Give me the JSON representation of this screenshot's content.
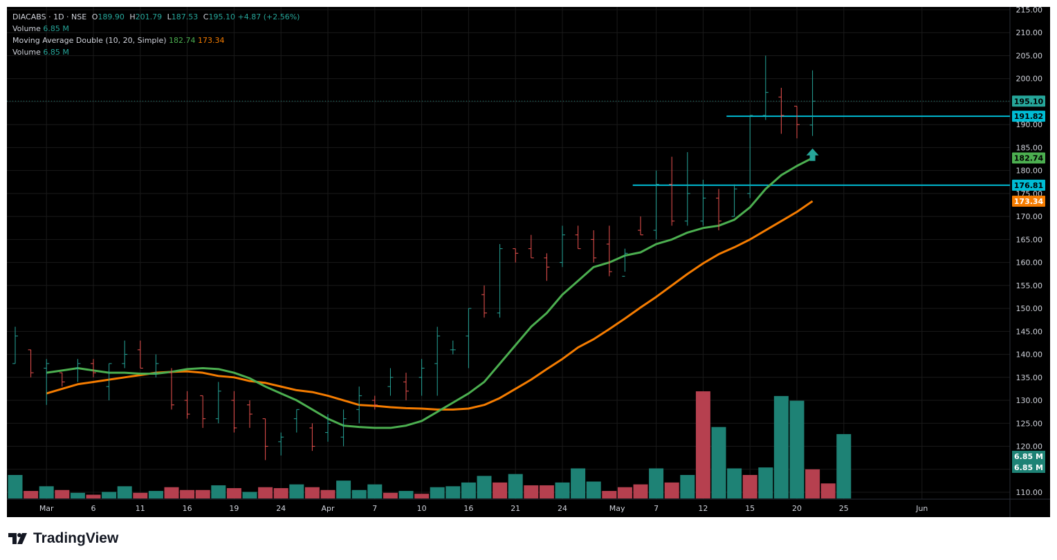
{
  "legend": {
    "symbol": "DIACABS · 1D · NSE",
    "open_label": "O",
    "open": "189.90",
    "high_label": "H",
    "high": "201.79",
    "low_label": "L",
    "low": "187.53",
    "close_label": "C",
    "close": "195.10",
    "change": "+4.87 (+2.56%)",
    "volume_label": "Volume",
    "volume": "6.85 M",
    "ma_label": "Moving Average Double (10, 20, Simple)",
    "ma_fast": "182.74",
    "ma_slow": "173.34",
    "volume2_label": "Volume",
    "volume2": "6.85 M"
  },
  "brand": {
    "name": "TradingView"
  },
  "colors": {
    "up": "#26a69a",
    "down": "#ef5350",
    "vol_up": "#1e8275",
    "vol_down": "#b6404f",
    "ma_fast": "#4caf50",
    "ma_slow": "#f57c00",
    "hline": "#00bcd4",
    "background": "#000000"
  },
  "chart_data": {
    "type": "ohlc",
    "y_axis": {
      "min": 110,
      "max": 215,
      "ticks": [
        "110.00",
        "115.00",
        "120.00",
        "125.00",
        "130.00",
        "135.00",
        "140.00",
        "145.00",
        "150.00",
        "155.00",
        "160.00",
        "165.00",
        "170.00",
        "175.00",
        "180.00",
        "185.00",
        "190.00",
        "195.00",
        "200.00",
        "205.00",
        "210.00",
        "215.00"
      ]
    },
    "x_axis": {
      "ticks": [
        {
          "i": 2,
          "label": "Mar"
        },
        {
          "i": 5,
          "label": "6"
        },
        {
          "i": 8,
          "label": "11"
        },
        {
          "i": 11,
          "label": "16"
        },
        {
          "i": 14,
          "label": "19"
        },
        {
          "i": 17,
          "label": "24"
        },
        {
          "i": 20,
          "label": "Apr"
        },
        {
          "i": 23,
          "label": "7"
        },
        {
          "i": 26,
          "label": "10"
        },
        {
          "i": 29,
          "label": "16"
        },
        {
          "i": 32,
          "label": "21"
        },
        {
          "i": 35,
          "label": "24"
        },
        {
          "i": 38.5,
          "label": "May"
        },
        {
          "i": 41,
          "label": "7"
        },
        {
          "i": 44,
          "label": "12"
        },
        {
          "i": 47,
          "label": "15"
        },
        {
          "i": 50,
          "label": "20"
        },
        {
          "i": 53,
          "label": "25"
        },
        {
          "i": 58,
          "label": "Jun"
        }
      ]
    },
    "bars": [
      {
        "o": 138,
        "h": 146,
        "l": 138,
        "c": 144
      },
      {
        "o": 141,
        "h": 141,
        "l": 135,
        "c": 136
      },
      {
        "o": 137,
        "h": 139,
        "l": 129,
        "c": 138
      },
      {
        "o": 136,
        "h": 136,
        "l": 133,
        "c": 134
      },
      {
        "o": 137,
        "h": 139,
        "l": 134,
        "c": 138
      },
      {
        "o": 138,
        "h": 139,
        "l": 135,
        "c": 136
      },
      {
        "o": 133,
        "h": 138,
        "l": 130,
        "c": 138
      },
      {
        "o": 138,
        "h": 143,
        "l": 137,
        "c": 140
      },
      {
        "o": 141,
        "h": 143,
        "l": 137,
        "c": 137
      },
      {
        "o": 136,
        "h": 140,
        "l": 135,
        "c": 138
      },
      {
        "o": 136,
        "h": 137,
        "l": 128,
        "c": 129
      },
      {
        "o": 130,
        "h": 132,
        "l": 126,
        "c": 127
      },
      {
        "o": 131,
        "h": 131,
        "l": 124,
        "c": 126
      },
      {
        "o": 126,
        "h": 134,
        "l": 125,
        "c": 132
      },
      {
        "o": 130,
        "h": 132,
        "l": 123,
        "c": 124
      },
      {
        "o": 129,
        "h": 130,
        "l": 124,
        "c": 127
      },
      {
        "o": 126,
        "h": 126,
        "l": 117,
        "c": 120
      },
      {
        "o": 121,
        "h": 123,
        "l": 118,
        "c": 122
      },
      {
        "o": 126,
        "h": 128,
        "l": 123,
        "c": 128
      },
      {
        "o": 124,
        "h": 125,
        "l": 119,
        "c": 120
      },
      {
        "o": 123,
        "h": 127,
        "l": 121,
        "c": 125
      },
      {
        "o": 122,
        "h": 128,
        "l": 120,
        "c": 126
      },
      {
        "o": 128,
        "h": 133,
        "l": 125,
        "c": 131
      },
      {
        "o": 130,
        "h": 131,
        "l": 128,
        "c": 129
      },
      {
        "o": 133,
        "h": 137,
        "l": 131,
        "c": 135
      },
      {
        "o": 134,
        "h": 136,
        "l": 130,
        "c": 132
      },
      {
        "o": 135,
        "h": 139,
        "l": 131,
        "c": 137
      },
      {
        "o": 138,
        "h": 146,
        "l": 131,
        "c": 144
      },
      {
        "o": 141,
        "h": 143,
        "l": 140,
        "c": 141
      },
      {
        "o": 144,
        "h": 150,
        "l": 137,
        "c": 150
      },
      {
        "o": 153,
        "h": 155,
        "l": 148,
        "c": 149
      },
      {
        "o": 149,
        "h": 164,
        "l": 148,
        "c": 163
      },
      {
        "o": 163,
        "h": 163,
        "l": 160,
        "c": 162
      },
      {
        "o": 163,
        "h": 166,
        "l": 161,
        "c": 161
      },
      {
        "o": 161,
        "h": 162,
        "l": 156,
        "c": 159
      },
      {
        "o": 160,
        "h": 168,
        "l": 159,
        "c": 166
      },
      {
        "o": 166,
        "h": 168,
        "l": 163,
        "c": 163
      },
      {
        "o": 165,
        "h": 167,
        "l": 160,
        "c": 161
      },
      {
        "o": 164,
        "h": 168,
        "l": 157,
        "c": 158
      },
      {
        "o": 157,
        "h": 163,
        "l": 158,
        "c": 162
      },
      {
        "o": 167,
        "h": 170,
        "l": 166,
        "c": 166
      },
      {
        "o": 167,
        "h": 180,
        "l": 165,
        "c": 177
      },
      {
        "o": 177,
        "h": 183,
        "l": 168,
        "c": 169
      },
      {
        "o": 169,
        "h": 184,
        "l": 168,
        "c": 175
      },
      {
        "o": 169,
        "h": 178,
        "l": 168,
        "c": 174
      },
      {
        "o": 174,
        "h": 176,
        "l": 167,
        "c": 169
      },
      {
        "o": 170,
        "h": 177,
        "l": 170,
        "c": 176
      },
      {
        "o": 175,
        "h": 192,
        "l": 174,
        "c": 192
      },
      {
        "o": 192,
        "h": 205,
        "l": 191,
        "c": 197
      },
      {
        "o": 196,
        "h": 198,
        "l": 188,
        "c": 192
      },
      {
        "o": 194,
        "h": 194,
        "l": 187,
        "c": 190
      },
      {
        "o": 189.9,
        "h": 201.79,
        "l": 187.53,
        "c": 195.1
      }
    ],
    "volume": [
      {
        "v": 2.5,
        "up": true
      },
      {
        "v": 0.8,
        "up": false
      },
      {
        "v": 1.3,
        "up": true
      },
      {
        "v": 0.9,
        "up": false
      },
      {
        "v": 0.6,
        "up": true
      },
      {
        "v": 0.4,
        "up": false
      },
      {
        "v": 0.7,
        "up": true
      },
      {
        "v": 1.3,
        "up": true
      },
      {
        "v": 0.6,
        "up": false
      },
      {
        "v": 0.8,
        "up": true
      },
      {
        "v": 1.2,
        "up": false
      },
      {
        "v": 0.9,
        "up": false
      },
      {
        "v": 0.9,
        "up": false
      },
      {
        "v": 1.4,
        "up": true
      },
      {
        "v": 1.1,
        "up": false
      },
      {
        "v": 0.7,
        "up": true
      },
      {
        "v": 1.2,
        "up": false
      },
      {
        "v": 1.1,
        "up": false
      },
      {
        "v": 1.5,
        "up": true
      },
      {
        "v": 1.2,
        "up": false
      },
      {
        "v": 0.9,
        "up": false
      },
      {
        "v": 1.9,
        "up": true
      },
      {
        "v": 0.9,
        "up": true
      },
      {
        "v": 1.5,
        "up": true
      },
      {
        "v": 0.6,
        "up": false
      },
      {
        "v": 0.8,
        "up": true
      },
      {
        "v": 0.5,
        "up": false
      },
      {
        "v": 1.2,
        "up": true
      },
      {
        "v": 1.3,
        "up": true
      },
      {
        "v": 1.7,
        "up": true
      },
      {
        "v": 2.4,
        "up": true
      },
      {
        "v": 1.7,
        "up": false
      },
      {
        "v": 2.6,
        "up": true
      },
      {
        "v": 1.4,
        "up": false
      },
      {
        "v": 1.4,
        "up": false
      },
      {
        "v": 1.7,
        "up": true
      },
      {
        "v": 3.2,
        "up": true
      },
      {
        "v": 1.8,
        "up": true
      },
      {
        "v": 0.8,
        "up": false
      },
      {
        "v": 1.2,
        "up": false
      },
      {
        "v": 1.5,
        "up": false
      },
      {
        "v": 3.2,
        "up": true
      },
      {
        "v": 1.7,
        "up": false
      },
      {
        "v": 2.5,
        "up": true
      },
      {
        "v": 11.4,
        "up": false
      },
      {
        "v": 7.6,
        "up": true
      },
      {
        "v": 3.2,
        "up": true
      },
      {
        "v": 2.5,
        "up": false
      },
      {
        "v": 3.3,
        "up": true
      },
      {
        "v": 10.9,
        "up": true
      },
      {
        "v": 10.4,
        "up": true
      },
      {
        "v": 3.1,
        "up": false
      },
      {
        "v": 1.6,
        "up": false
      },
      {
        "v": 6.85,
        "up": true
      }
    ],
    "ma_fast": [
      136,
      136.5,
      137,
      136.5,
      136,
      136,
      135.8,
      135.8,
      136.2,
      136.8,
      137,
      136.8,
      136,
      134.8,
      133,
      131.5,
      130,
      128,
      126,
      124.5,
      124.2,
      124,
      124,
      124.5,
      125.5,
      127.5,
      129.5,
      131.5,
      134,
      138,
      142,
      146,
      149,
      153,
      156,
      159,
      160,
      161.5,
      162.2,
      164,
      165,
      166.5,
      167.5,
      168,
      169.3,
      172,
      176,
      179,
      181,
      182.74
    ],
    "ma_slow": [
      131.5,
      132.5,
      133.5,
      134,
      134.5,
      135,
      135.5,
      136,
      136.2,
      136.3,
      136,
      135.3,
      135,
      134.2,
      133.8,
      133,
      132.2,
      131.8,
      131,
      130,
      129,
      128.8,
      128.5,
      128.3,
      128.2,
      128,
      128,
      128.2,
      129,
      130.5,
      132.5,
      134.5,
      136.8,
      139,
      141.5,
      143.3,
      145.5,
      147.8,
      150.2,
      152.5,
      155,
      157.5,
      159.8,
      161.8,
      163.3,
      165,
      167,
      169,
      171,
      173.34
    ],
    "price_levels": [
      {
        "value": 191.82,
        "label": "191.82"
      },
      {
        "value": 176.81,
        "label": "176.81"
      }
    ],
    "last_close": {
      "value": 195.1,
      "label": "195.10"
    },
    "axis_badges": [
      {
        "value": 195.1,
        "label": "195.10",
        "color": "#26a69a"
      },
      {
        "value": 191.82,
        "label": "191.82",
        "color": "#00bcd4"
      },
      {
        "value": 182.74,
        "label": "182.74",
        "color": "#4caf50"
      },
      {
        "value": 176.81,
        "label": "176.81",
        "color": "#00bcd4"
      },
      {
        "value": 173.34,
        "label": "173.34",
        "color": "#f57c00"
      }
    ],
    "volume_badges": [
      "6.85 M",
      "6.85 M"
    ]
  }
}
